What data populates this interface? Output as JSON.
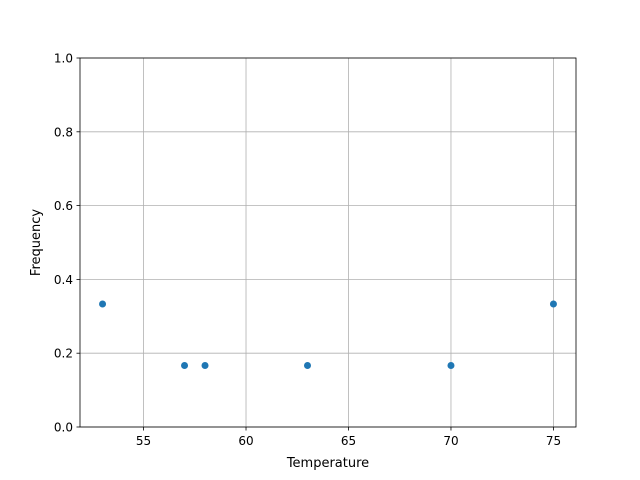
{
  "chart_data": {
    "type": "scatter",
    "title": "",
    "xlabel": "Temperature",
    "ylabel": "Frequency",
    "x": [
      53,
      57,
      58,
      63,
      70,
      75
    ],
    "y": [
      0.3333,
      0.1667,
      0.1667,
      0.1667,
      0.1667,
      0.3333
    ],
    "xlim": [
      51.9,
      76.1
    ],
    "ylim": [
      0,
      1
    ],
    "xticks": [
      55,
      60,
      65,
      70,
      75
    ],
    "xtick_labels": [
      "55",
      "60",
      "65",
      "70",
      "75"
    ],
    "yticks": [
      0,
      0.2,
      0.4,
      0.6,
      0.8,
      1.0
    ],
    "ytick_labels": [
      "0.0",
      "0.2",
      "0.4",
      "0.6",
      "0.8",
      "1.0"
    ],
    "grid": true,
    "color": "#1f77b4"
  }
}
